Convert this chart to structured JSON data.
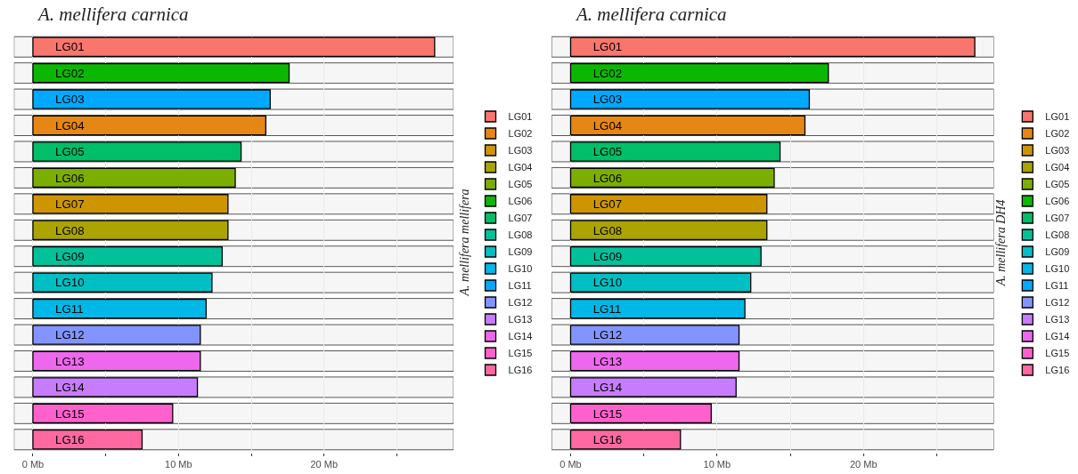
{
  "chart_data": [
    {
      "type": "bar",
      "orientation": "horizontal",
      "title": "A. mellifera carnica",
      "legend_title": "A. mellifera mellifera",
      "legend": "right",
      "grid": "x",
      "tick_labels": "x",
      "data_labels": false,
      "categories": [
        "LG01",
        "LG02",
        "LG03",
        "LG04",
        "LG05",
        "LG06",
        "LG07",
        "LG08",
        "LG09",
        "LG10",
        "LG11",
        "LG12",
        "LG13",
        "LG14",
        "LG15",
        "LG16"
      ],
      "xlim": [
        -1.3,
        28.9
      ],
      "xticks": [
        {
          "value": 0,
          "label": "0 Mb"
        },
        {
          "value": 5,
          "label": null
        },
        {
          "value": 10,
          "label": "10 Mb"
        },
        {
          "value": 15,
          "label": null
        },
        {
          "value": 20,
          "label": "20 Mb"
        },
        {
          "value": 25,
          "label": null
        }
      ],
      "series": [
        {
          "name": "LG01",
          "color": "#f8766d",
          "values": [
            27.6,
            null,
            null,
            null,
            null,
            null,
            null,
            null,
            null,
            null,
            null,
            null,
            null,
            null,
            null,
            null
          ]
        },
        {
          "name": "LG02",
          "color": "#e68613",
          "values": [
            null,
            null,
            null,
            16.0,
            null,
            null,
            null,
            null,
            null,
            null,
            null,
            null,
            null,
            null,
            null,
            null
          ]
        },
        {
          "name": "LG03",
          "color": "#cd9600",
          "values": [
            null,
            null,
            null,
            null,
            null,
            null,
            13.4,
            null,
            null,
            null,
            null,
            null,
            null,
            null,
            null,
            null
          ]
        },
        {
          "name": "LG04",
          "color": "#aba300",
          "values": [
            null,
            null,
            null,
            null,
            null,
            null,
            null,
            13.4,
            null,
            null,
            null,
            null,
            null,
            null,
            null,
            null
          ]
        },
        {
          "name": "LG05",
          "color": "#7cae00",
          "values": [
            null,
            null,
            null,
            null,
            null,
            13.9,
            null,
            null,
            null,
            null,
            null,
            null,
            null,
            null,
            null,
            null
          ]
        },
        {
          "name": "LG06",
          "color": "#0cb702",
          "values": [
            null,
            17.6,
            null,
            null,
            null,
            null,
            null,
            null,
            null,
            null,
            null,
            null,
            null,
            null,
            null,
            null
          ]
        },
        {
          "name": "LG07",
          "color": "#00be67",
          "values": [
            null,
            null,
            null,
            null,
            14.3,
            null,
            null,
            null,
            null,
            null,
            null,
            null,
            null,
            null,
            null,
            null
          ]
        },
        {
          "name": "LG08",
          "color": "#00c19a",
          "values": [
            null,
            null,
            null,
            null,
            null,
            null,
            null,
            null,
            13.0,
            null,
            null,
            null,
            null,
            null,
            null,
            null
          ]
        },
        {
          "name": "LG09",
          "color": "#00bfc4",
          "values": [
            null,
            null,
            null,
            null,
            null,
            null,
            null,
            null,
            null,
            12.3,
            null,
            null,
            null,
            null,
            null,
            null
          ]
        },
        {
          "name": "LG10",
          "color": "#00b8e7",
          "values": [
            null,
            null,
            null,
            null,
            null,
            null,
            null,
            null,
            null,
            null,
            11.9,
            null,
            null,
            null,
            null,
            null
          ]
        },
        {
          "name": "LG11",
          "color": "#00a9ff",
          "values": [
            null,
            null,
            16.3,
            null,
            null,
            null,
            null,
            null,
            null,
            null,
            null,
            null,
            null,
            null,
            null,
            null
          ]
        },
        {
          "name": "LG12",
          "color": "#8494ff",
          "values": [
            null,
            null,
            null,
            null,
            null,
            null,
            null,
            null,
            null,
            null,
            null,
            11.5,
            null,
            null,
            null,
            null
          ]
        },
        {
          "name": "LG13",
          "color": "#c77cff",
          "values": [
            null,
            null,
            null,
            null,
            null,
            null,
            null,
            null,
            null,
            null,
            null,
            null,
            null,
            11.3,
            null,
            null
          ]
        },
        {
          "name": "LG14",
          "color": "#ed68ed",
          "values": [
            null,
            null,
            null,
            null,
            null,
            null,
            null,
            null,
            null,
            null,
            null,
            null,
            11.5,
            null,
            null,
            null
          ]
        },
        {
          "name": "LG15",
          "color": "#ff61cc",
          "values": [
            null,
            null,
            null,
            null,
            null,
            null,
            null,
            null,
            null,
            null,
            null,
            null,
            null,
            null,
            9.6,
            null
          ]
        },
        {
          "name": "LG16",
          "color": "#ff68a1",
          "values": [
            null,
            null,
            null,
            null,
            null,
            null,
            null,
            null,
            null,
            null,
            null,
            null,
            null,
            null,
            null,
            7.5
          ]
        }
      ]
    },
    {
      "type": "bar",
      "orientation": "horizontal",
      "title": "A. mellifera carnica",
      "legend_title": "A. mellifera DH4",
      "legend": "right",
      "grid": "x",
      "tick_labels": "x",
      "data_labels": false,
      "categories": [
        "LG01",
        "LG02",
        "LG03",
        "LG04",
        "LG05",
        "LG06",
        "LG07",
        "LG08",
        "LG09",
        "LG10",
        "LG11",
        "LG12",
        "LG13",
        "LG14",
        "LG15",
        "LG16"
      ],
      "xlim": [
        -1.3,
        28.9
      ],
      "xticks": [
        {
          "value": 0,
          "label": "0 Mb"
        },
        {
          "value": 5,
          "label": null
        },
        {
          "value": 10,
          "label": "10 Mb"
        },
        {
          "value": 15,
          "label": null
        },
        {
          "value": 20,
          "label": "20 Mb"
        },
        {
          "value": 25,
          "label": null
        }
      ],
      "series": [
        {
          "name": "LG01",
          "color": "#f8766d",
          "values": [
            27.6,
            null,
            null,
            null,
            null,
            null,
            null,
            null,
            null,
            null,
            null,
            null,
            null,
            null,
            null,
            null
          ]
        },
        {
          "name": "LG02",
          "color": "#e68613",
          "values": [
            null,
            null,
            null,
            16.0,
            null,
            null,
            null,
            null,
            null,
            null,
            null,
            null,
            null,
            null,
            null,
            null
          ]
        },
        {
          "name": "LG03",
          "color": "#cd9600",
          "values": [
            null,
            null,
            null,
            null,
            null,
            null,
            13.4,
            null,
            null,
            null,
            null,
            null,
            null,
            null,
            null,
            null
          ]
        },
        {
          "name": "LG04",
          "color": "#aba300",
          "values": [
            null,
            null,
            null,
            null,
            null,
            null,
            null,
            13.4,
            null,
            null,
            null,
            null,
            null,
            null,
            null,
            null
          ]
        },
        {
          "name": "LG05",
          "color": "#7cae00",
          "values": [
            null,
            null,
            null,
            null,
            null,
            13.9,
            null,
            null,
            null,
            null,
            null,
            null,
            null,
            null,
            null,
            null
          ]
        },
        {
          "name": "LG06",
          "color": "#0cb702",
          "values": [
            null,
            17.6,
            null,
            null,
            null,
            null,
            null,
            null,
            null,
            null,
            null,
            null,
            null,
            null,
            null,
            null
          ]
        },
        {
          "name": "LG07",
          "color": "#00be67",
          "values": [
            null,
            null,
            null,
            null,
            14.3,
            null,
            null,
            null,
            null,
            null,
            null,
            null,
            null,
            null,
            null,
            null
          ]
        },
        {
          "name": "LG08",
          "color": "#00c19a",
          "values": [
            null,
            null,
            null,
            null,
            null,
            null,
            null,
            null,
            13.0,
            null,
            null,
            null,
            null,
            null,
            null,
            null
          ]
        },
        {
          "name": "LG09",
          "color": "#00bfc4",
          "values": [
            null,
            null,
            null,
            null,
            null,
            null,
            null,
            null,
            null,
            12.3,
            null,
            null,
            null,
            null,
            null,
            null
          ]
        },
        {
          "name": "LG10",
          "color": "#00b8e7",
          "values": [
            null,
            null,
            null,
            null,
            null,
            null,
            null,
            null,
            null,
            null,
            11.9,
            null,
            null,
            null,
            null,
            null
          ]
        },
        {
          "name": "LG11",
          "color": "#00a9ff",
          "values": [
            null,
            null,
            16.3,
            null,
            null,
            null,
            null,
            null,
            null,
            null,
            null,
            null,
            null,
            null,
            null,
            null
          ]
        },
        {
          "name": "LG12",
          "color": "#8494ff",
          "values": [
            null,
            null,
            null,
            null,
            null,
            null,
            null,
            null,
            null,
            null,
            null,
            11.5,
            null,
            null,
            null,
            null
          ]
        },
        {
          "name": "LG13",
          "color": "#c77cff",
          "values": [
            null,
            null,
            null,
            null,
            null,
            null,
            null,
            null,
            null,
            null,
            null,
            null,
            null,
            11.3,
            null,
            null
          ]
        },
        {
          "name": "LG14",
          "color": "#ed68ed",
          "values": [
            null,
            null,
            null,
            null,
            null,
            null,
            null,
            null,
            null,
            null,
            null,
            null,
            11.5,
            null,
            null,
            null
          ]
        },
        {
          "name": "LG15",
          "color": "#ff61cc",
          "values": [
            null,
            null,
            null,
            null,
            null,
            null,
            null,
            null,
            null,
            null,
            null,
            null,
            null,
            null,
            9.6,
            null
          ]
        },
        {
          "name": "LG16",
          "color": "#ff68a1",
          "values": [
            null,
            null,
            null,
            null,
            null,
            null,
            null,
            null,
            null,
            null,
            null,
            null,
            null,
            null,
            null,
            7.5
          ]
        }
      ]
    }
  ]
}
